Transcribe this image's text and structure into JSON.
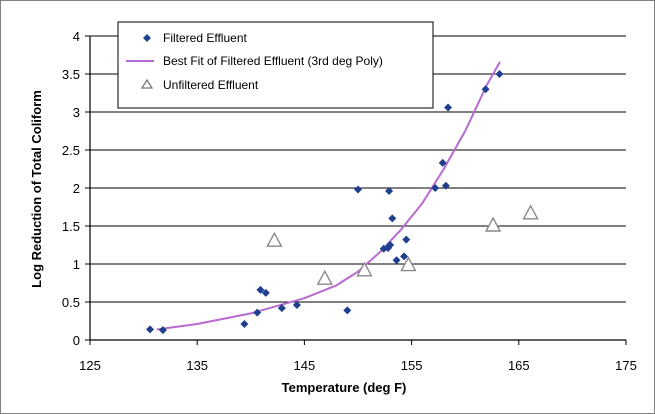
{
  "chart_data": {
    "type": "scatter",
    "xlabel": "Temperature (deg F)",
    "ylabel": "Log Reduction of Total Coliform",
    "xlim": [
      125,
      175
    ],
    "ylim": [
      0,
      4
    ],
    "x_ticks": [
      125,
      135,
      145,
      155,
      165,
      175
    ],
    "y_ticks": [
      0,
      0.5,
      1,
      1.5,
      2,
      2.5,
      3,
      3.5,
      4
    ],
    "x_tick_labels": [
      "125",
      "135",
      "145",
      "155",
      "165",
      "175"
    ],
    "y_tick_labels": [
      "0",
      "0.5",
      "1",
      "1.5",
      "2",
      "2.5",
      "3",
      "3.5",
      "4"
    ],
    "grid": "horizontal",
    "legend_position": "top-left",
    "series": [
      {
        "name": "Filtered Effluent",
        "kind": "points",
        "marker": "diamond",
        "color": "#1f3f8f",
        "x": [
          130.6,
          131.8,
          139.4,
          140.6,
          140.9,
          141.4,
          142.9,
          144.3,
          149.0,
          150.0,
          152.4,
          152.8,
          152.9,
          153.0,
          153.2,
          153.6,
          154.3,
          154.5,
          157.2,
          157.9,
          158.2,
          158.4,
          161.9,
          163.2
        ],
        "y": [
          0.14,
          0.13,
          0.21,
          0.36,
          0.66,
          0.62,
          0.42,
          0.46,
          0.39,
          1.98,
          1.2,
          1.21,
          1.96,
          1.25,
          1.6,
          1.05,
          1.1,
          1.32,
          2.0,
          2.33,
          2.03,
          3.06,
          3.3,
          3.5
        ]
      },
      {
        "name": "Best Fit of Filtered Effluent (3rd deg Poly)",
        "kind": "line",
        "color": "#b86ad0",
        "x": [
          131.3,
          135,
          140,
          145,
          148,
          150,
          152,
          154,
          156,
          158,
          160,
          162,
          163.2
        ],
        "y": [
          0.14,
          0.21,
          0.35,
          0.55,
          0.72,
          0.9,
          1.15,
          1.45,
          1.8,
          2.25,
          2.75,
          3.35,
          3.65
        ]
      },
      {
        "name": "Unfiltered Effluent",
        "kind": "points",
        "marker": "open-triangle",
        "color": "#8a8a8a",
        "x": [
          142.2,
          146.9,
          150.6,
          154.7,
          162.6,
          166.1
        ],
        "y": [
          1.3,
          0.8,
          0.91,
          0.98,
          1.5,
          1.66
        ]
      }
    ]
  }
}
